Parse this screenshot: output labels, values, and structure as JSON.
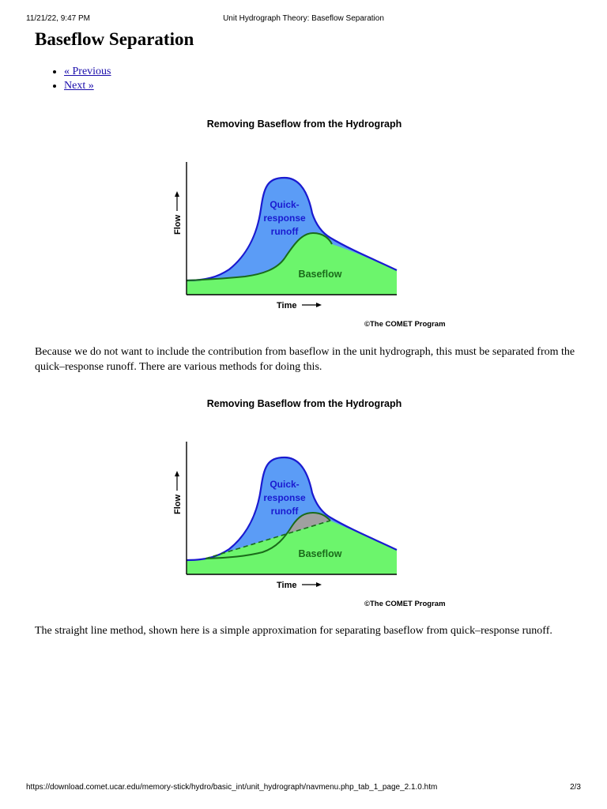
{
  "print_header": {
    "datetime": "11/21/22, 9:47 PM",
    "doc_title": "Unit Hydrograph Theory: Baseflow Separation"
  },
  "page": {
    "title": "Baseflow Separation",
    "nav": {
      "previous": "« Previous",
      "next": "Next »"
    },
    "paragraph_1": "Because we do not want to include the contribution from baseflow in the unit hydrograph, this must be separated from the quick–response runoff. There are various methods for doing this.",
    "paragraph_2": "The straight line method, shown here is a simple approximation for separating baseflow from quick–response runoff."
  },
  "figure_1": {
    "title": "Removing Baseflow from the Hydrograph",
    "y_label": "Flow",
    "x_label": "Time",
    "quick_label": [
      "Quick-",
      "response",
      "runoff"
    ],
    "baseflow_label": "Baseflow",
    "credit": "©The COMET Program"
  },
  "figure_2": {
    "title": "Removing Baseflow from the Hydrograph",
    "y_label": "Flow",
    "x_label": "Time",
    "quick_label": [
      "Quick-",
      "response",
      "runoff"
    ],
    "baseflow_label": "Baseflow",
    "credit": "©The COMET Program"
  },
  "colors": {
    "quick_runoff": "#5b9cf6",
    "baseflow": "#6cf56c",
    "separation_gap": "#a0a0a0",
    "hydrograph_line": "#1a1ad0",
    "baseflow_line": "#1a6b1a"
  },
  "print_footer": {
    "url": "https://download.comet.ucar.edu/memory-stick/hydro/basic_int/unit_hydrograph/navmenu.php_tab_1_page_2.1.0.htm",
    "page_number": "2/3"
  }
}
